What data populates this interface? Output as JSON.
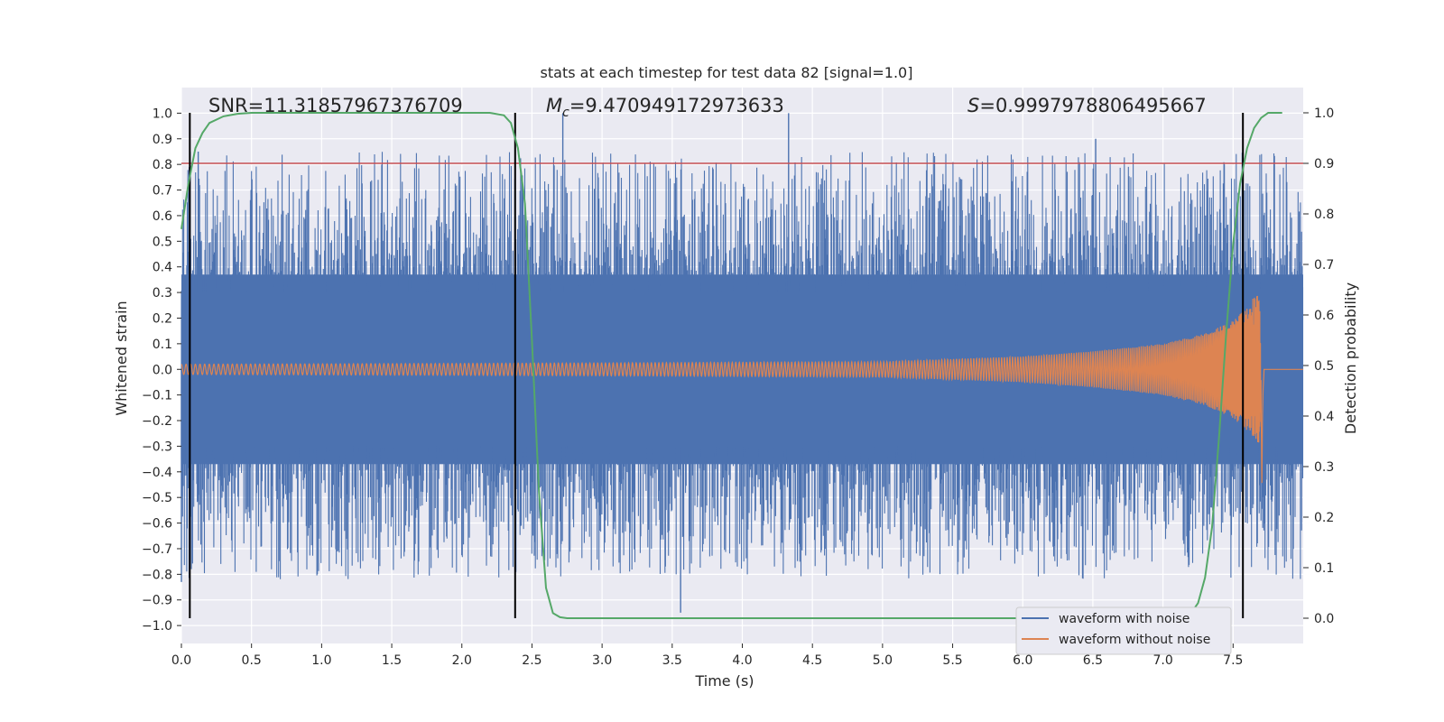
{
  "chart_data": {
    "type": "line",
    "title": "stats at each timestep for test data 82 [signal=1.0]",
    "xlabel": "Time (s)",
    "ylabel": "Whitened strain",
    "ylabel_right": "Detection probability",
    "xlim": [
      0.0,
      8.0
    ],
    "ylim": [
      -1.07,
      1.1
    ],
    "ylim_right": [
      -0.05,
      1.05
    ],
    "grid": true,
    "legend_position": "lower-right",
    "xticks": [
      "0.0",
      "0.5",
      "1.0",
      "1.5",
      "2.0",
      "2.5",
      "3.0",
      "3.5",
      "4.0",
      "4.5",
      "5.0",
      "5.5",
      "6.0",
      "6.5",
      "7.0",
      "7.5"
    ],
    "yticks": [
      "1.0",
      "0.9",
      "0.8",
      "0.7",
      "0.6",
      "0.5",
      "0.4",
      "0.3",
      "0.2",
      "0.1",
      "0.0",
      "−0.1",
      "−0.2",
      "−0.3",
      "−0.4",
      "−0.5",
      "−0.6",
      "−0.7",
      "−0.8",
      "−0.9",
      "−1.0"
    ],
    "yticks_right": [
      "1.0",
      "0.9",
      "0.8",
      "0.7",
      "0.6",
      "0.5",
      "0.4",
      "0.3",
      "0.2",
      "0.1",
      "0.0"
    ],
    "annotations": {
      "snr": "SNR=11.31857967376709",
      "mc_symbol": "M",
      "mc_sub": "c",
      "mc_value": "=9.470949172973633",
      "s_symbol": "S",
      "s_value": "=0.9997978806495667"
    },
    "legend": [
      {
        "label": "waveform with noise",
        "color": "#4c72b0"
      },
      {
        "label": "waveform without noise",
        "color": "#dd8452"
      }
    ],
    "series": [
      {
        "name": "waveform with noise",
        "color": "#4c72b0",
        "kind": "noise",
        "amplitude_band": [
          -0.37,
          0.37
        ],
        "peak_max": 1.0,
        "peak_min": -0.95
      },
      {
        "name": "waveform without noise",
        "color": "#dd8452",
        "kind": "chirp",
        "envelope": [
          [
            0.0,
            0.02
          ],
          [
            3.0,
            0.025
          ],
          [
            5.0,
            0.03
          ],
          [
            6.0,
            0.05
          ],
          [
            6.5,
            0.07
          ],
          [
            7.0,
            0.1
          ],
          [
            7.3,
            0.14
          ],
          [
            7.5,
            0.19
          ],
          [
            7.6,
            0.24
          ],
          [
            7.68,
            0.31
          ],
          [
            7.72,
            0.0
          ],
          [
            8.0,
            0.0
          ]
        ],
        "coalescence_min": -0.49
      },
      {
        "name": "",
        "color": "#55a868",
        "kind": "probability",
        "axis": "right",
        "x": [
          0.0,
          0.05,
          0.1,
          0.15,
          0.2,
          0.3,
          0.4,
          0.5,
          1.0,
          1.5,
          2.0,
          2.2,
          2.3,
          2.35,
          2.4,
          2.45,
          2.5,
          2.55,
          2.6,
          2.65,
          2.7,
          2.75,
          3.0,
          7.0,
          7.2,
          7.25,
          7.3,
          7.35,
          7.4,
          7.45,
          7.5,
          7.55,
          7.6,
          7.65,
          7.7,
          7.75,
          7.8,
          7.85
        ],
        "y": [
          0.77,
          0.86,
          0.93,
          0.96,
          0.98,
          0.993,
          0.998,
          1.0,
          1.0,
          1.0,
          1.0,
          1.0,
          0.995,
          0.98,
          0.93,
          0.82,
          0.55,
          0.25,
          0.06,
          0.01,
          0.002,
          0.0,
          0.0,
          0.0,
          0.01,
          0.03,
          0.08,
          0.18,
          0.36,
          0.56,
          0.74,
          0.86,
          0.93,
          0.97,
          0.99,
          1.0,
          1.0,
          1.0
        ]
      }
    ],
    "threshold": {
      "axis": "right",
      "value": 0.9,
      "color": "#c44e52"
    },
    "vertical_lines": [
      0.06,
      2.38,
      7.57
    ]
  }
}
